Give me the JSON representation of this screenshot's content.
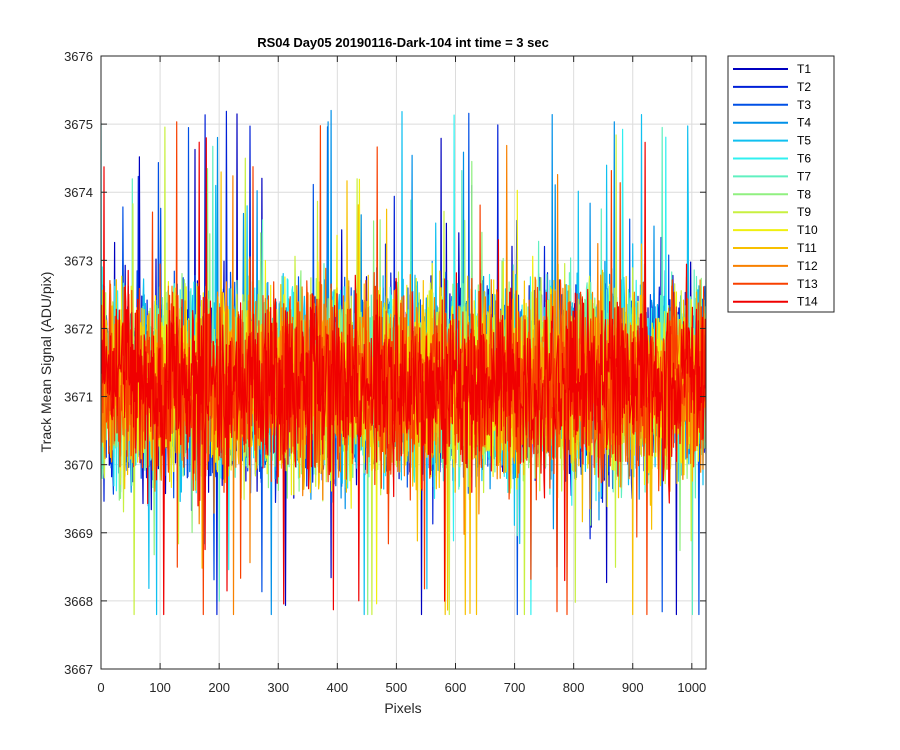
{
  "chart_data": {
    "type": "line",
    "title": "RS04 Day05 20190116-Dark-104 int time = 3 sec",
    "xlabel": "Pixels",
    "ylabel": "Track Mean Signal (ADU/pix)",
    "xlim": [
      0,
      1024
    ],
    "ylim": [
      3667,
      3676
    ],
    "xticks": [
      "0",
      "100",
      "200",
      "300",
      "400",
      "500",
      "600",
      "700",
      "800",
      "900",
      "1000"
    ],
    "yticks": [
      "3667",
      "3668",
      "3669",
      "3670",
      "3671",
      "3672",
      "3673",
      "3674",
      "3675",
      "3676"
    ],
    "grid": true,
    "legend_position": "outside-top-right",
    "series_profile": {
      "points_per_series": 1024,
      "mean": 3671.2,
      "typical_min": 3669.3,
      "typical_max": 3673.3,
      "extreme_min": 3667.8,
      "extreme_max": 3675.3
    },
    "series": [
      {
        "name": "T1",
        "color": "#0000bf"
      },
      {
        "name": "T2",
        "color": "#0020d8"
      },
      {
        "name": "T3",
        "color": "#0050e6"
      },
      {
        "name": "T4",
        "color": "#0090e8"
      },
      {
        "name": "T5",
        "color": "#10c0f0"
      },
      {
        "name": "T6",
        "color": "#30f0f0"
      },
      {
        "name": "T7",
        "color": "#60f0c0"
      },
      {
        "name": "T8",
        "color": "#90f080"
      },
      {
        "name": "T9",
        "color": "#c8f040"
      },
      {
        "name": "T10",
        "color": "#f0f010"
      },
      {
        "name": "T11",
        "color": "#f8c000"
      },
      {
        "name": "T12",
        "color": "#f88000"
      },
      {
        "name": "T13",
        "color": "#f84000"
      },
      {
        "name": "T14",
        "color": "#f00000"
      }
    ]
  }
}
